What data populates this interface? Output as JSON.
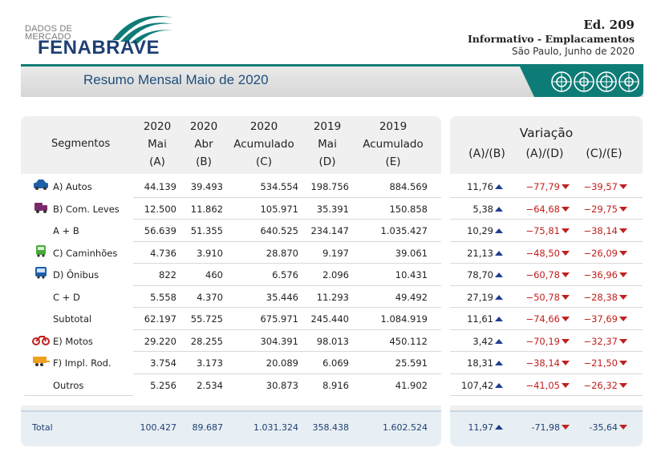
{
  "header": {
    "logo_small_1": "DADOS DE",
    "logo_small_2": "MERCADO",
    "logo_brand": "FENABRAVE",
    "edition": "Ed. 209",
    "info": "Informativo - Emplacamentos",
    "place_date": "São Paulo, Junho de 2020"
  },
  "banner": {
    "title": "Resumo Mensal Maio de 2020"
  },
  "table": {
    "segments_header": "Segmentos",
    "columns": [
      {
        "l1": "2020",
        "l2": "Mai",
        "l3": "(A)"
      },
      {
        "l1": "2020",
        "l2": "Abr",
        "l3": "(B)"
      },
      {
        "l1": "2020",
        "l2": "Acumulado",
        "l3": "(C)"
      },
      {
        "l1": "2019",
        "l2": "Mai",
        "l3": "(D)"
      },
      {
        "l1": "2019",
        "l2": "Acumulado",
        "l3": "(E)"
      }
    ],
    "variation_title": "Variação",
    "variation_columns": [
      "(A)/(B)",
      "(A)/(D)",
      "(C)/(E)"
    ],
    "rows": [
      {
        "label": "A) Autos",
        "icon": "car-icon",
        "a": "44.139",
        "b": "39.493",
        "c": "534.554",
        "d": "198.756",
        "e": "884.569",
        "v1": "11,76",
        "v2": "-77,79",
        "v3": "-39,57"
      },
      {
        "label": "B) Com. Leves",
        "icon": "pickup-icon",
        "a": "12.500",
        "b": "11.862",
        "c": "105.971",
        "d": "35.391",
        "e": "150.858",
        "v1": "5,38",
        "v2": "-64,68",
        "v3": "-29,75"
      },
      {
        "label": "A + B",
        "icon": "",
        "a": "56.639",
        "b": "51.355",
        "c": "640.525",
        "d": "234.147",
        "e": "1.035.427",
        "v1": "10,29",
        "v2": "-75,81",
        "v3": "-38,14"
      },
      {
        "label": "C) Caminhões",
        "icon": "truck-icon",
        "a": "4.736",
        "b": "3.910",
        "c": "28.870",
        "d": "9.197",
        "e": "39.061",
        "v1": "21,13",
        "v2": "-48,50",
        "v3": "-26,09"
      },
      {
        "label": "D) Ônibus",
        "icon": "bus-icon",
        "a": "822",
        "b": "460",
        "c": "6.576",
        "d": "2.096",
        "e": "10.431",
        "v1": "78,70",
        "v2": "-60,78",
        "v3": "-36,96"
      },
      {
        "label": "C + D",
        "icon": "",
        "a": "5.558",
        "b": "4.370",
        "c": "35.446",
        "d": "11.293",
        "e": "49.492",
        "v1": "27,19",
        "v2": "-50,78",
        "v3": "-28,38"
      },
      {
        "label": "Subtotal",
        "icon": "",
        "a": "62.197",
        "b": "55.725",
        "c": "675.971",
        "d": "245.440",
        "e": "1.084.919",
        "v1": "11,61",
        "v2": "-74,66",
        "v3": "-37,69"
      },
      {
        "label": "E) Motos",
        "icon": "motorcycle-icon",
        "a": "29.220",
        "b": "28.255",
        "c": "304.391",
        "d": "98.013",
        "e": "450.112",
        "v1": "3,42",
        "v2": "-70,19",
        "v3": "-32,37"
      },
      {
        "label": "F) Impl. Rod.",
        "icon": "trailer-icon",
        "a": "3.754",
        "b": "3.173",
        "c": "20.089",
        "d": "6.069",
        "e": "25.591",
        "v1": "18,31",
        "v2": "-38,14",
        "v3": "-21,50"
      },
      {
        "label": "Outros",
        "icon": "",
        "a": "5.256",
        "b": "2.534",
        "c": "30.873",
        "d": "8.916",
        "e": "41.902",
        "v1": "107,42",
        "v2": "-41,05",
        "v3": "-26,32"
      }
    ],
    "total": {
      "label": "Total",
      "a": "100.427",
      "b": "89.687",
      "c": "1.031.324",
      "d": "358.438",
      "e": "1.602.524",
      "v1": "11,97",
      "v2": "-71,98",
      "v3": "-35,64"
    }
  },
  "colors": {
    "brand_blue": "#1e3f73",
    "teal": "#0e7c76",
    "negative": "#c0201e",
    "arrow_up": "#1e3f8f"
  }
}
